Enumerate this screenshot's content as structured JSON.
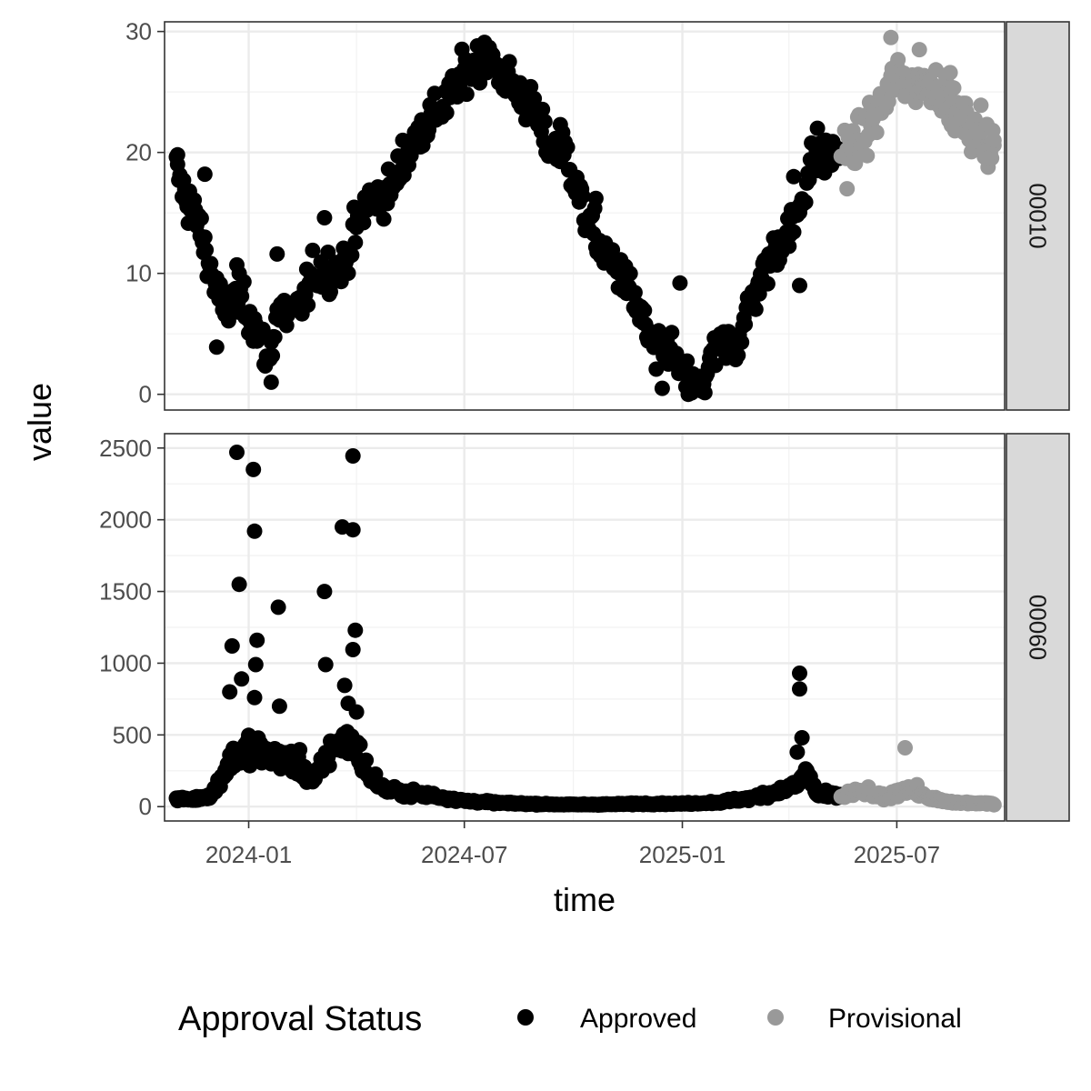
{
  "chart_data": {
    "type": "scatter",
    "xlabel": "time",
    "ylabel": "value",
    "x_range": [
      "2023-10-22",
      "2025-09-30"
    ],
    "x_ticks": [
      {
        "date": "2024-01-01",
        "label": "2024-01"
      },
      {
        "date": "2024-07-01",
        "label": "2024-07"
      },
      {
        "date": "2025-01-01",
        "label": "2025-01"
      },
      {
        "date": "2025-07-01",
        "label": "2025-07"
      }
    ],
    "legend": {
      "title": "Approval Status",
      "position": "bottom",
      "entries": [
        {
          "label": "Approved",
          "color": "#000000"
        },
        {
          "label": "Provisional",
          "color": "#999999"
        }
      ]
    },
    "grid": true,
    "panels": [
      {
        "strip": "00010",
        "ylim": [
          -1.3,
          30.8
        ],
        "y_ticks": [
          0,
          10,
          20,
          30
        ],
        "anchors": [
          [
            "2023-11-01",
            18.5
          ],
          [
            "2023-11-10",
            16
          ],
          [
            "2023-11-20",
            14
          ],
          [
            "2023-12-01",
            10
          ],
          [
            "2023-12-10",
            7
          ],
          [
            "2023-12-25",
            8
          ],
          [
            "2024-01-05",
            6
          ],
          [
            "2024-01-18",
            2.5
          ],
          [
            "2024-01-25",
            7
          ],
          [
            "2024-02-10",
            6.5
          ],
          [
            "2024-02-25",
            10
          ],
          [
            "2024-03-20",
            10.5
          ],
          [
            "2024-04-10",
            16
          ],
          [
            "2024-05-01",
            17
          ],
          [
            "2024-05-25",
            22
          ],
          [
            "2024-06-15",
            24
          ],
          [
            "2024-07-01",
            26.5
          ],
          [
            "2024-07-20",
            28
          ],
          [
            "2024-08-05",
            26
          ],
          [
            "2024-08-25",
            24
          ],
          [
            "2024-09-10",
            20.5
          ],
          [
            "2024-09-25",
            20
          ],
          [
            "2024-10-10",
            15
          ],
          [
            "2024-10-25",
            12
          ],
          [
            "2024-11-10",
            10
          ],
          [
            "2024-11-25",
            7
          ],
          [
            "2024-12-10",
            3
          ],
          [
            "2024-12-20",
            4
          ],
          [
            "2025-01-01",
            1.5
          ],
          [
            "2025-01-15",
            0.2
          ],
          [
            "2025-02-01",
            4
          ],
          [
            "2025-02-15",
            4
          ],
          [
            "2025-03-01",
            8
          ],
          [
            "2025-03-20",
            12
          ],
          [
            "2025-04-05",
            14
          ],
          [
            "2025-04-20",
            19
          ],
          [
            "2025-05-05",
            20
          ],
          [
            "2025-05-15",
            20
          ],
          [
            "2025-05-31",
            21
          ],
          [
            "2025-06-20",
            24
          ],
          [
            "2025-07-01",
            26.5
          ],
          [
            "2025-07-15",
            25.5
          ],
          [
            "2025-08-01",
            26
          ],
          [
            "2025-08-15",
            24
          ],
          [
            "2025-09-01",
            22
          ],
          [
            "2025-09-10",
            21
          ],
          [
            "2025-09-20",
            20.5
          ]
        ],
        "noise": 1.8,
        "highlights": [
          [
            "2023-11-02",
            19.8
          ],
          [
            "2023-11-12",
            16.8
          ],
          [
            "2023-11-25",
            18.2
          ],
          [
            "2023-12-05",
            3.9
          ],
          [
            "2023-12-22",
            10.7
          ],
          [
            "2024-01-20",
            1.0
          ],
          [
            "2024-01-25",
            11.6
          ],
          [
            "2024-03-05",
            14.6
          ],
          [
            "2024-05-10",
            21.0
          ],
          [
            "2024-07-18",
            29.1
          ],
          [
            "2024-09-20",
            22.3
          ],
          [
            "2024-10-20",
            16.2
          ],
          [
            "2024-12-15",
            0.5
          ],
          [
            "2024-12-30",
            9.2
          ],
          [
            "2025-04-05",
            18.0
          ],
          [
            "2025-04-10",
            9.0
          ],
          [
            "2025-04-25",
            22.0
          ],
          [
            "2025-05-20",
            17.0
          ],
          [
            "2025-06-26",
            29.5
          ],
          [
            "2025-07-20",
            28.5
          ],
          [
            "2025-08-15",
            26.6
          ],
          [
            "2025-09-10",
            23.9
          ],
          [
            "2025-09-15",
            19.5
          ],
          [
            "2025-09-21",
            21.0
          ]
        ]
      },
      {
        "strip": "00060",
        "ylim": [
          -100,
          2600
        ],
        "y_ticks": [
          0,
          500,
          1000,
          1500,
          2000,
          2500
        ],
        "anchors": [
          [
            "2023-11-01",
            55
          ],
          [
            "2023-11-15",
            50
          ],
          [
            "2023-12-01",
            80
          ],
          [
            "2023-12-15",
            300
          ],
          [
            "2024-01-01",
            400
          ],
          [
            "2024-01-20",
            350
          ],
          [
            "2024-02-10",
            300
          ],
          [
            "2024-02-25",
            180
          ],
          [
            "2024-03-15",
            450
          ],
          [
            "2024-04-01",
            420
          ],
          [
            "2024-04-10",
            230
          ],
          [
            "2024-04-25",
            120
          ],
          [
            "2024-05-15",
            90
          ],
          [
            "2024-06-01",
            80
          ],
          [
            "2024-07-01",
            40
          ],
          [
            "2024-08-01",
            25
          ],
          [
            "2024-09-01",
            18
          ],
          [
            "2024-10-01",
            14
          ],
          [
            "2024-11-01",
            16
          ],
          [
            "2024-12-01",
            20
          ],
          [
            "2025-01-01",
            20
          ],
          [
            "2025-02-01",
            30
          ],
          [
            "2025-03-01",
            60
          ],
          [
            "2025-03-25",
            110
          ],
          [
            "2025-04-10",
            160
          ],
          [
            "2025-04-15",
            260
          ],
          [
            "2025-04-25",
            80
          ],
          [
            "2025-05-15",
            70
          ],
          [
            "2025-06-01",
            110
          ],
          [
            "2025-06-20",
            60
          ],
          [
            "2025-07-10",
            130
          ],
          [
            "2025-07-20",
            90
          ],
          [
            "2025-08-01",
            50
          ],
          [
            "2025-08-15",
            30
          ],
          [
            "2025-09-01",
            25
          ],
          [
            "2025-09-20",
            20
          ]
        ],
        "noise": 0.2,
        "highlights": [
          [
            "2023-12-22",
            2470
          ],
          [
            "2024-01-05",
            2350
          ],
          [
            "2024-01-06",
            1920
          ],
          [
            "2023-12-24",
            1550
          ],
          [
            "2023-12-18",
            1120
          ],
          [
            "2024-01-08",
            1160
          ],
          [
            "2024-01-07",
            990
          ],
          [
            "2023-12-26",
            890
          ],
          [
            "2023-12-16",
            800
          ],
          [
            "2024-01-06",
            760
          ],
          [
            "2024-01-26",
            1390
          ],
          [
            "2024-01-27",
            700
          ],
          [
            "2024-03-05",
            1500
          ],
          [
            "2024-03-20",
            1950
          ],
          [
            "2024-03-29",
            1930
          ],
          [
            "2024-03-29",
            2445
          ],
          [
            "2024-03-06",
            990
          ],
          [
            "2024-03-31",
            1230
          ],
          [
            "2024-03-29",
            1095
          ],
          [
            "2024-03-22",
            845
          ],
          [
            "2024-03-25",
            720
          ],
          [
            "2024-04-01",
            660
          ],
          [
            "2025-04-10",
            930
          ],
          [
            "2025-04-10",
            820
          ],
          [
            "2025-04-12",
            480
          ],
          [
            "2025-04-08",
            380
          ],
          [
            "2025-07-08",
            410
          ]
        ]
      }
    ],
    "provisional_from": "2025-05-15"
  }
}
